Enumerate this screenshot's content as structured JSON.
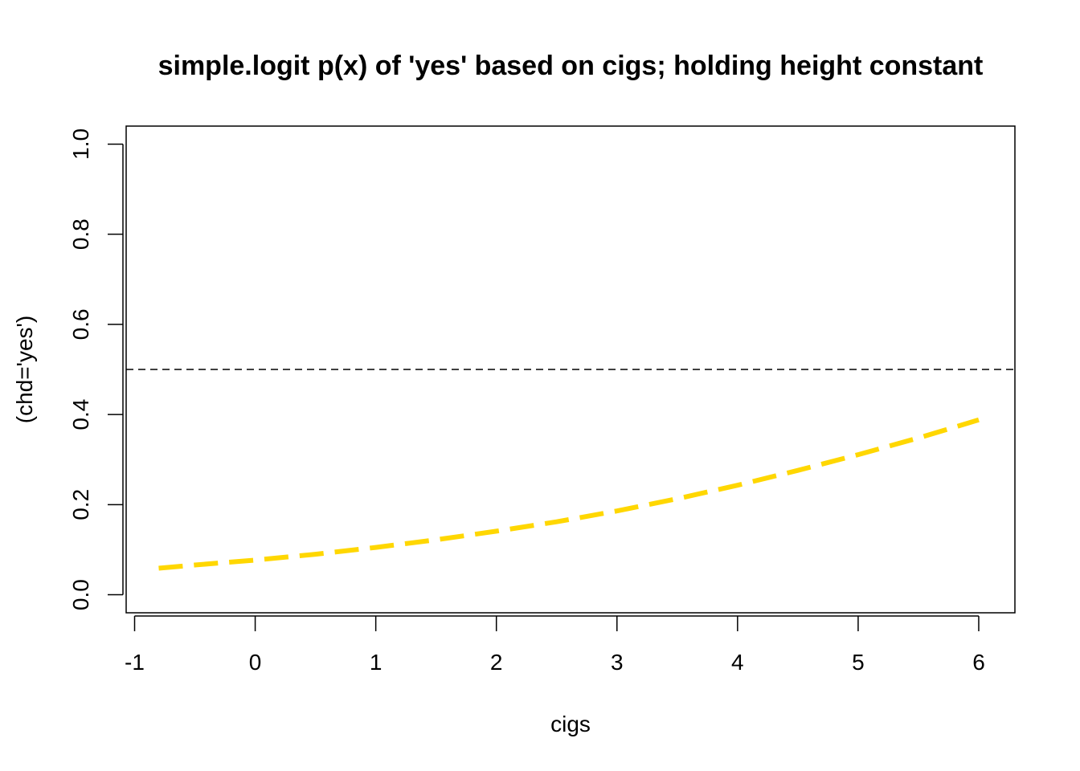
{
  "chart_data": {
    "type": "line",
    "title": "simple.logit p(x) of 'yes' based on cigs; holding height constant",
    "xlabel": "cigs",
    "ylabel": "(chd='yes')",
    "xlim": [
      -1.07,
      6.3
    ],
    "ylim": [
      -0.04,
      1.04
    ],
    "x_ticks": [
      -1,
      0,
      1,
      2,
      3,
      4,
      5,
      6
    ],
    "x_tick_labels": [
      "-1",
      "0",
      "1",
      "2",
      "3",
      "4",
      "5",
      "6"
    ],
    "y_ticks": [
      0.0,
      0.2,
      0.4,
      0.6,
      0.8,
      1.0
    ],
    "y_tick_labels": [
      "0.0",
      "0.2",
      "0.4",
      "0.6",
      "0.8",
      "1.0"
    ],
    "grid": false,
    "reference_line": {
      "y": 0.5,
      "style": "dashed",
      "color": "#000000"
    },
    "series": [
      {
        "color": "#FFD700",
        "style": "dashed",
        "x": [
          -0.8,
          -0.5,
          0,
          0.5,
          1,
          1.5,
          2,
          2.5,
          3,
          3.5,
          4,
          4.5,
          5,
          5.5,
          6
        ],
        "y": [
          0.059,
          0.066,
          0.077,
          0.09,
          0.105,
          0.122,
          0.141,
          0.162,
          0.186,
          0.213,
          0.243,
          0.276,
          0.311,
          0.348,
          0.388
        ]
      }
    ]
  }
}
